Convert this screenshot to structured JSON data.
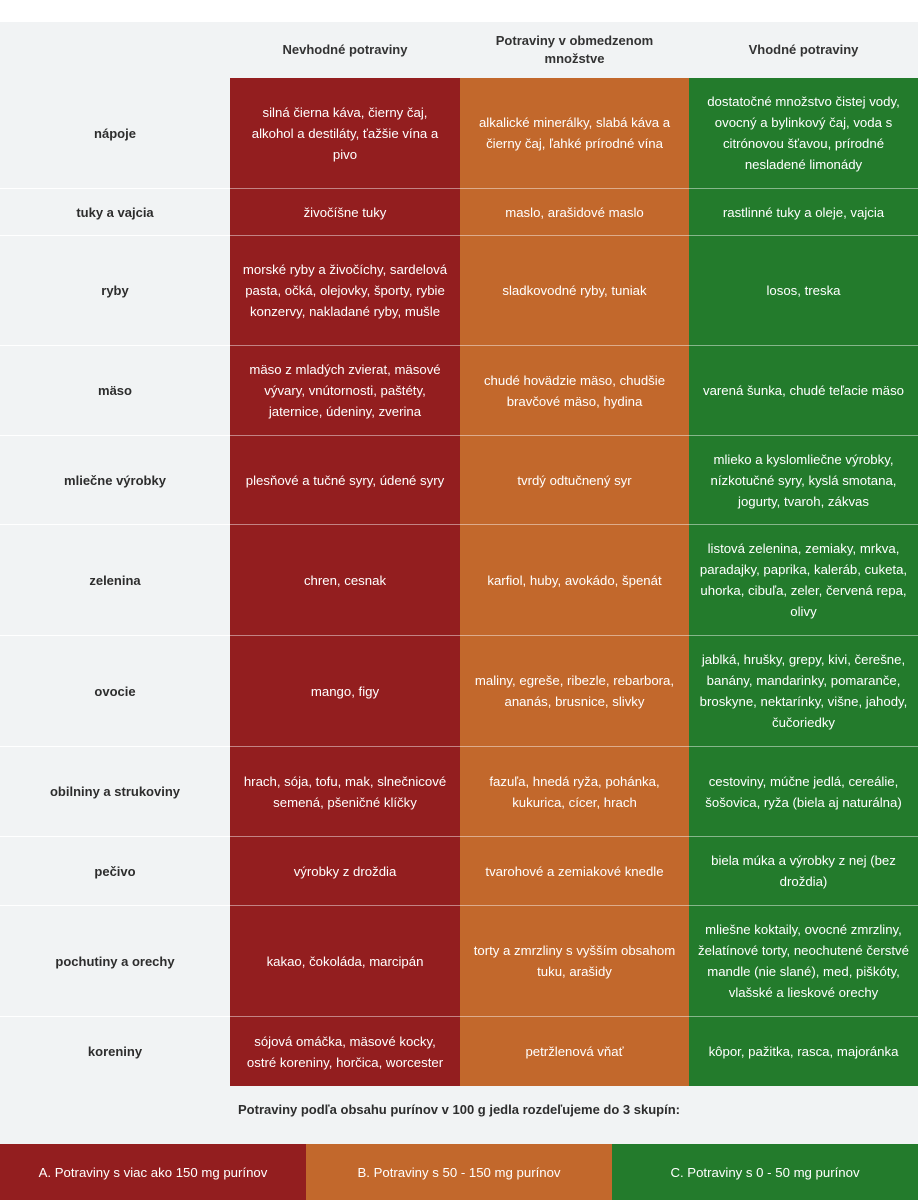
{
  "colors": {
    "bad": "#931e1f",
    "limited": "#c2682c",
    "good": "#237b2c",
    "background": "#f1f3f4"
  },
  "headers": {
    "bad": "Nevhodné potraviny",
    "limited": "Potraviny v obmedzenom množstve",
    "good": "Vhodné potraviny"
  },
  "rows": [
    {
      "label": "nápoje",
      "bad": "silná čierna káva, čierny čaj, alkohol a destiláty, ťažšie vína a pivo",
      "limited": "alkalické minerálky, slabá káva a čierny čaj, ľahké prírodné vína",
      "good": "dostatočné množstvo čistej vody, ovocný a bylinkový čaj, voda s citrónovou šťavou, prírodné nesladené limonády"
    },
    {
      "label": "tuky a vajcia",
      "bad": "živočíšne tuky",
      "limited": "maslo, arašidové maslo",
      "good": "rastlinné tuky a oleje, vajcia"
    },
    {
      "label": "ryby",
      "bad": "morské ryby a živočíchy, sardelová pasta, očká, olejovky, športy, rybie konzervy, nakladané ryby, mušle",
      "limited": "sladkovodné ryby, tuniak",
      "good": "losos, treska"
    },
    {
      "label": "mäso",
      "bad": "mäso z mladých zvierat, mäsové vývary, vnútornosti, paštéty, jaternice, údeniny, zverina",
      "limited": "chudé hovädzie mäso, chudšie bravčové mäso, hydina",
      "good": "varená šunka, chudé teľacie mäso"
    },
    {
      "label": "mliečne výrobky",
      "bad": "plesňové a tučné syry, údené syry",
      "limited": "tvrdý odtučnený syr",
      "good": "mlieko a kyslomliečne výrobky, nízkotučné syry, kyslá smotana, jogurty, tvaroh, zákvas"
    },
    {
      "label": "zelenina",
      "bad": "chren, cesnak",
      "limited": "karfiol, huby, avokádo, špenát",
      "good": "listová zelenina, zemiaky, mrkva, paradajky, paprika, kaleráb, cuketa, uhorka, cibuľa, zeler, červená repa, olivy"
    },
    {
      "label": "ovocie",
      "bad": "mango, figy",
      "limited": "maliny, egreše, ribezle, rebarbora, ananás, brusnice, slivky",
      "good": "jablká, hrušky, grepy, kivi, čerešne, banány, mandarinky, pomaranče, broskyne, nektarínky, višne, jahody, čučoriedky"
    },
    {
      "label": "obilniny a strukoviny",
      "bad": "hrach, sója, tofu, mak, slnečnicové semená, pšeničné klíčky",
      "limited": "fazuľa, hnedá ryža, pohánka, kukurica, cícer, hrach",
      "good": "cestoviny, múčne jedlá, cereálie, šošovica, ryža (biela aj naturálna)"
    },
    {
      "label": "pečivo",
      "bad": "výrobky z droždia",
      "limited": "tvarohové a zemiakové knedle",
      "good": "biela múka a výrobky z nej (bez droždia)"
    },
    {
      "label": "pochutiny a orechy",
      "bad": "kakao, čokoláda, marcipán",
      "limited": "torty a zmrzliny s vyšším obsahom tuku, arašidy",
      "good": "mliešne koktaily, ovocné zmrzliny, želatínové torty, neochutené čerstvé mandle (nie slané), med, piškóty, vlašské a lieskové orechy"
    },
    {
      "label": "koreniny",
      "bad": "sójová omáčka, mäsové kocky, ostré koreniny, horčica, worcester",
      "limited": "petržlenová vňať",
      "good": "kôpor, pažitka, rasca, majoránka"
    }
  ],
  "caption": "Potraviny podľa obsahu purínov v 100 g jedla rozdeľujeme do 3 skupín:",
  "legend": {
    "a": "A. Potraviny s viac ako 150 mg purínov",
    "b": "B. Potraviny s 50 - 150 mg purínov",
    "c": "C. Potraviny s 0 - 50 mg purínov"
  }
}
